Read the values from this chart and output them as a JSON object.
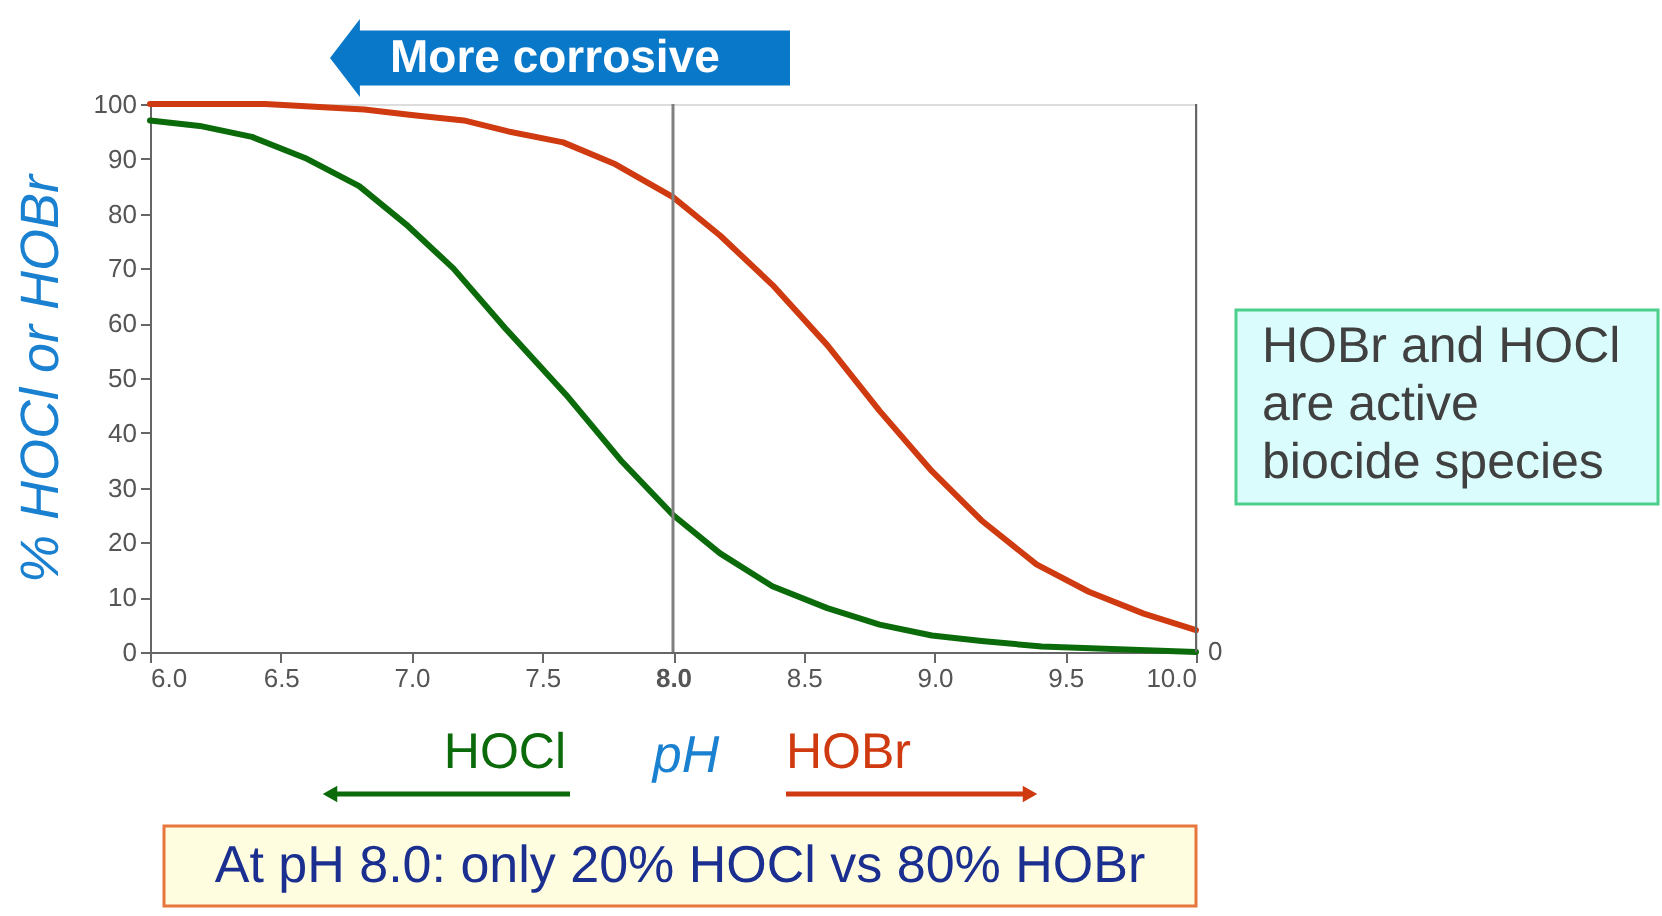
{
  "chart_data": {
    "type": "line",
    "xlabel": "pH",
    "ylabel": "% HOCl or HOBr",
    "xlim": [
      6,
      10
    ],
    "ylim": [
      0,
      100
    ],
    "xticks": [
      {
        "value": 6,
        "label": "6.0"
      },
      {
        "value": 6.5,
        "label": "6.5"
      },
      {
        "value": 7,
        "label": "7.0"
      },
      {
        "value": 7.5,
        "label": "7.5"
      },
      {
        "value": 8,
        "label": "8.0"
      },
      {
        "value": 8.5,
        "label": "8.5"
      },
      {
        "value": 9,
        "label": "9.0"
      },
      {
        "value": 9.5,
        "label": "9.5"
      },
      {
        "value": 10,
        "label": "10.0"
      }
    ],
    "yticks": [
      0,
      10,
      20,
      30,
      40,
      50,
      60,
      70,
      80,
      90,
      100
    ],
    "series": [
      {
        "name": "HOCl",
        "color": "#0b6b0b",
        "x": [
          6.0,
          6.19,
          6.39,
          6.6,
          6.8,
          6.98,
          7.16,
          7.36,
          7.59,
          7.8,
          8.0,
          8.18,
          8.38,
          8.59,
          8.79,
          8.99,
          9.18,
          9.41,
          10.0
        ],
        "values": [
          97,
          96,
          94,
          90,
          85,
          78,
          70,
          59,
          47,
          35,
          25,
          18,
          12,
          8,
          5,
          3,
          2,
          1,
          0
        ]
      },
      {
        "name": "HOBr",
        "color": "#d03a10",
        "x": [
          6.0,
          6.44,
          6.82,
          7.0,
          7.2,
          7.37,
          7.58,
          7.78,
          8.0,
          8.18,
          8.38,
          8.59,
          8.79,
          8.99,
          9.18,
          9.39,
          9.59,
          9.8,
          10.0
        ],
        "values": [
          100,
          100,
          99,
          98,
          97,
          95,
          93,
          89,
          83,
          76,
          67,
          56,
          44,
          33,
          24,
          16,
          11,
          7,
          4
        ]
      }
    ],
    "ref_lines": [
      {
        "axis": "x",
        "value": 8,
        "color": "#808080"
      }
    ],
    "annotations": [
      "More corrosive",
      "HOBr and HOCl are active biocide species",
      "At pH 8.0: only 20% HOCl  vs  80% HOBr",
      "0"
    ]
  }
}
